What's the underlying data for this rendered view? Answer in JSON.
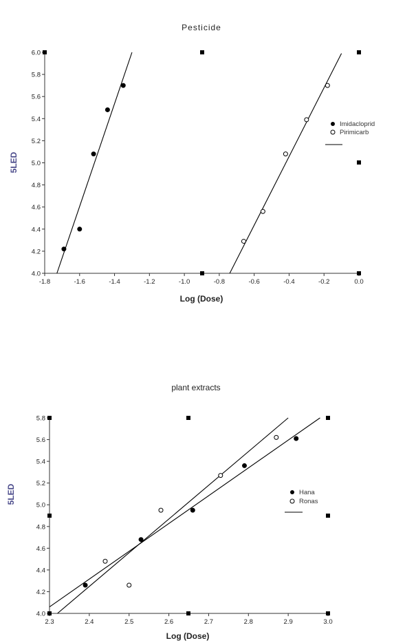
{
  "chart_data": [
    {
      "type": "scatter",
      "title": "Pesticide",
      "xlabel": "Log (Dose)",
      "ylabel": "5LED",
      "xlim": [
        -1.8,
        0.0
      ],
      "ylim": [
        4.0,
        6.0
      ],
      "x_ticks": [
        "-1.8",
        "-1.6",
        "-1.4",
        "-1.2",
        "-1.0",
        "-0.8",
        "-0.6",
        "-0.4",
        "-0.2",
        "0.0"
      ],
      "y_ticks": [
        "4.0",
        "4.2",
        "4.4",
        "4.6",
        "4.8",
        "5.0",
        "5.2",
        "5.4",
        "5.6",
        "5.8",
        "6.0"
      ],
      "legend_position": "right",
      "series": [
        {
          "name": "Imidacloprid",
          "marker": "filled-circle",
          "points": [
            [
              -1.69,
              4.22
            ],
            [
              -1.6,
              4.4
            ],
            [
              -1.52,
              5.08
            ],
            [
              -1.44,
              5.48
            ],
            [
              -1.35,
              5.7
            ]
          ],
          "fit_line": [
            [
              -1.73,
              4.0
            ],
            [
              -1.3,
              6.0
            ]
          ]
        },
        {
          "name": "Pirimicarb",
          "marker": "open-circle",
          "points": [
            [
              -0.66,
              4.29
            ],
            [
              -0.55,
              4.56
            ],
            [
              -0.42,
              5.08
            ],
            [
              -0.3,
              5.39
            ],
            [
              -0.18,
              5.7
            ]
          ],
          "fit_line": [
            [
              -0.74,
              4.0
            ],
            [
              -0.1,
              5.99
            ]
          ]
        }
      ]
    },
    {
      "type": "scatter",
      "title": "plant extracts",
      "xlabel": "Log (Dose)",
      "ylabel": "5LED",
      "xlim": [
        2.3,
        3.0
      ],
      "ylim": [
        4.0,
        5.8
      ],
      "x_ticks": [
        "2.3",
        "2.4",
        "2.5",
        "2.6",
        "2.7",
        "2.8",
        "2.9",
        "3.0"
      ],
      "y_ticks": [
        "4.0",
        "4.2",
        "4.4",
        "4.6",
        "4.8",
        "5.0",
        "5.2",
        "5.4",
        "5.6",
        "5.8"
      ],
      "y_ticks_display": [
        "4.0",
        "4.2",
        "4.4",
        "4.6",
        "4.8",
        "5.0",
        "5.2",
        "5.4",
        "5.6",
        "5.8"
      ],
      "legend_position": "right",
      "series": [
        {
          "name": "Hana",
          "marker": "filled-circle",
          "points": [
            [
              2.39,
              4.26
            ],
            [
              2.53,
              4.68
            ],
            [
              2.66,
              4.95
            ],
            [
              2.79,
              5.36
            ],
            [
              2.92,
              5.61
            ]
          ],
          "fit_line": [
            [
              2.3,
              4.06
            ],
            [
              2.98,
              5.8
            ]
          ]
        },
        {
          "name": "Ronas",
          "marker": "open-circle",
          "points": [
            [
              2.44,
              4.48
            ],
            [
              2.5,
              4.26
            ],
            [
              2.58,
              4.95
            ],
            [
              2.73,
              5.27
            ],
            [
              2.87,
              5.62
            ]
          ],
          "fit_line": [
            [
              2.32,
              4.0
            ],
            [
              2.9,
              5.8
            ]
          ]
        }
      ]
    }
  ]
}
